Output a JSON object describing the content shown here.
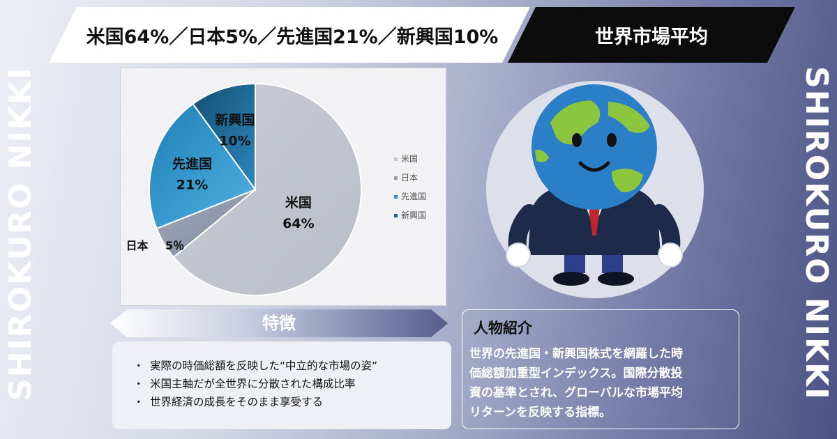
{
  "header": {
    "allocation_text": "米国64%／日本5%／先進国21%／新興国10%",
    "category_label": "世界市場平均"
  },
  "side": {
    "left_text": "SHIROKURO NIKKI",
    "right_text": "SHIROKURO NIKKI"
  },
  "chart_data": {
    "type": "pie",
    "categories": [
      "米国",
      "日本",
      "先進国",
      "新興国"
    ],
    "values": [
      64,
      5,
      21,
      10
    ],
    "value_labels": [
      "64%",
      "5％",
      "21%",
      "10%"
    ],
    "legend_position": "right",
    "colors": [
      "#c6c9d1",
      "#8f9aab",
      "#2e90c7",
      "#1e5f86"
    ]
  },
  "features": {
    "title": "特徴",
    "items": [
      "実際の時価総額を反映した“中立的な市場の姿”",
      "米国主軸だが全世界に分散された構成比率",
      "世界経済の成長をそのまま享受する"
    ]
  },
  "profile": {
    "title": "人物紹介",
    "lines": [
      "世界の先進国・新興国株式を網羅した時",
      "価総額加重型インデックス。国際分散投",
      "資の基準とされ、グローバルな市場平均",
      "リターンを反映する指標。"
    ]
  },
  "colors": {
    "banner_black": "#0c0c0c",
    "suit": "#1e2a4a",
    "tie": "#c0242c",
    "ocean": "#2a7fc6",
    "land": "#8cc63e"
  },
  "icons": {
    "mascot": "earth-businessman-illustration"
  }
}
